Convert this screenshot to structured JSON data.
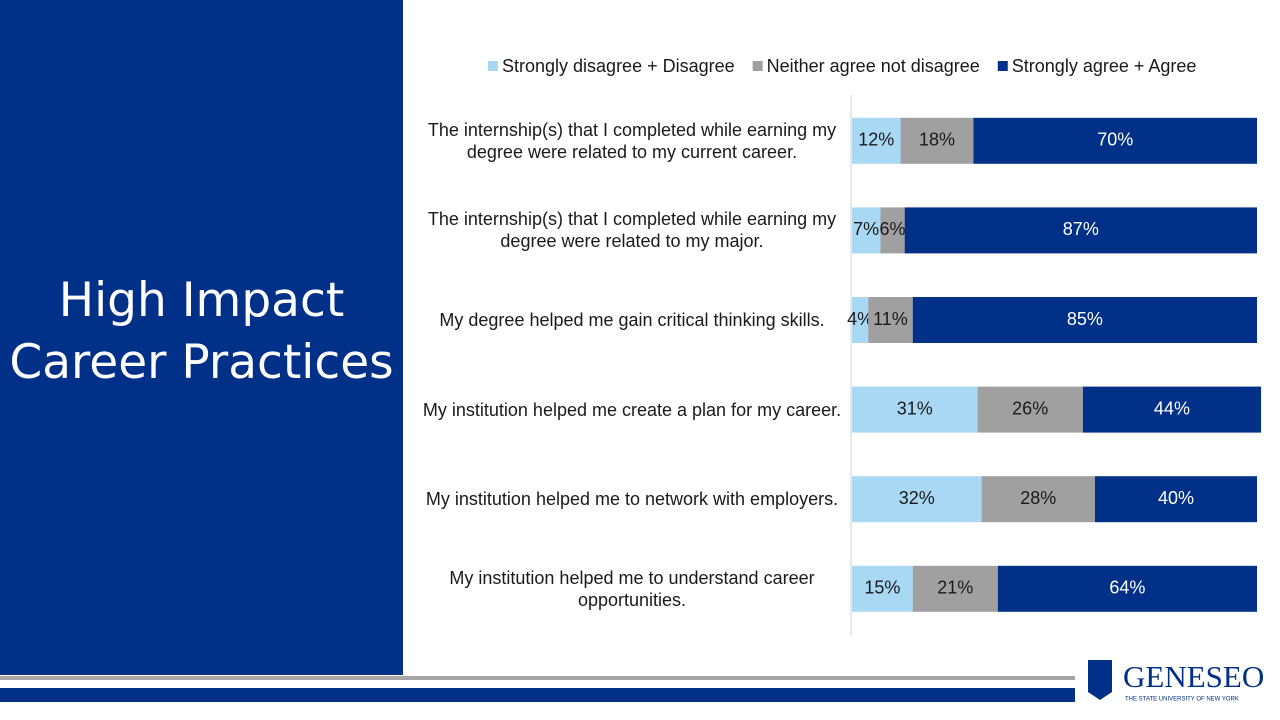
{
  "title": "High Impact Career Practices",
  "chart_data": {
    "type": "stacked-bar-horizontal",
    "categories": [
      "The internship(s) that I completed while earning my degree were related to my current career.",
      "The internship(s) that I completed while earning my degree were related to my major.",
      "My degree helped me gain critical thinking skills.",
      "My institution helped me create a plan for my career.",
      "My institution helped me to network with employers.",
      "My institution helped me to understand career opportunities."
    ],
    "series": [
      {
        "name": "Strongly disagree + Disagree",
        "color": "#a9d8f4",
        "label_color": "#1a1a1a",
        "values": [
          12,
          7,
          4,
          31,
          32,
          15
        ],
        "value_labels": [
          "12%",
          "7%",
          "4%",
          "31%",
          "32%",
          "15%"
        ]
      },
      {
        "name": "Neither agree not disagree",
        "color": "#a0a0a0",
        "label_color": "#1a1a1a",
        "values": [
          18,
          6,
          11,
          26,
          28,
          21
        ],
        "value_labels": [
          "18%",
          "6%",
          "11%",
          "26%",
          "28%",
          "21%"
        ]
      },
      {
        "name": "Strongly agree + Agree",
        "color": "#003087",
        "label_color": "#ffffff",
        "values": [
          70,
          87,
          85,
          44,
          40,
          64
        ],
        "value_labels": [
          "70%",
          "87%",
          "85%",
          "44%",
          "40%",
          "64%"
        ]
      }
    ],
    "xlim": [
      0,
      100
    ]
  },
  "logo": {
    "name": "GENESEO",
    "tagline": "THE STATE UNIVERSITY OF NEW YORK"
  }
}
